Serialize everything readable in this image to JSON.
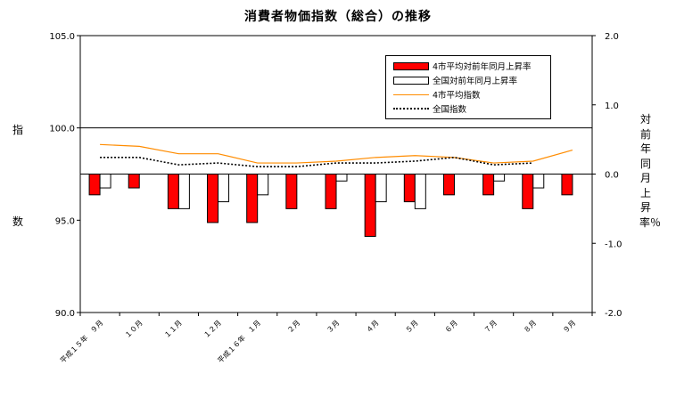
{
  "chart_data": {
    "type": "bar+line",
    "title": "消費者物価指数（総合）の推移",
    "y_left_label": "指数",
    "y_right_label": "対前年同月上昇率％",
    "y_left_lim": [
      90.0,
      105.0
    ],
    "y_left_ticks": [
      "105.0",
      "100.0",
      "95.0",
      "90.0"
    ],
    "y_right_lim": [
      -2.0,
      2.0
    ],
    "y_right_ticks": [
      "2.0",
      "1.0",
      "0.0",
      "-1.0",
      "-2.0"
    ],
    "categories": [
      "平成１５年　９月",
      "１０月",
      "１１月",
      "１２月",
      "平成１６年　１月",
      "２月",
      "３月",
      "４月",
      "５月",
      "６月",
      "７月",
      "８月",
      "９月"
    ],
    "series": [
      {
        "name": "4市平均対前年同月上昇率",
        "kind": "bar",
        "axis": "right",
        "color": "#ff0000",
        "values": [
          -0.3,
          -0.2,
          -0.5,
          -0.7,
          -0.7,
          -0.5,
          -0.5,
          -0.9,
          -0.4,
          -0.3,
          -0.3,
          -0.5,
          -0.3
        ]
      },
      {
        "name": "全国対前年同月上昇率",
        "kind": "bar",
        "axis": "right",
        "color": "#ffffff",
        "values": [
          -0.2,
          null,
          -0.5,
          -0.4,
          -0.3,
          null,
          -0.1,
          -0.4,
          -0.5,
          null,
          -0.1,
          -0.2,
          null
        ]
      },
      {
        "name": "4市平均指数",
        "kind": "line",
        "axis": "left",
        "color": "#ff8c00",
        "values": [
          99.1,
          99.0,
          98.6,
          98.6,
          98.1,
          98.1,
          98.2,
          98.4,
          98.5,
          98.4,
          98.1,
          98.2,
          98.8
        ]
      },
      {
        "name": "全国指数",
        "kind": "line",
        "axis": "left",
        "color": "#000000",
        "dash": "dotted",
        "values": [
          98.4,
          98.4,
          98.0,
          98.1,
          97.9,
          97.9,
          98.1,
          98.1,
          98.2,
          98.4,
          98.0,
          98.1,
          null
        ]
      }
    ],
    "reference_line_left": 100.0,
    "legend_position": "top-right"
  }
}
